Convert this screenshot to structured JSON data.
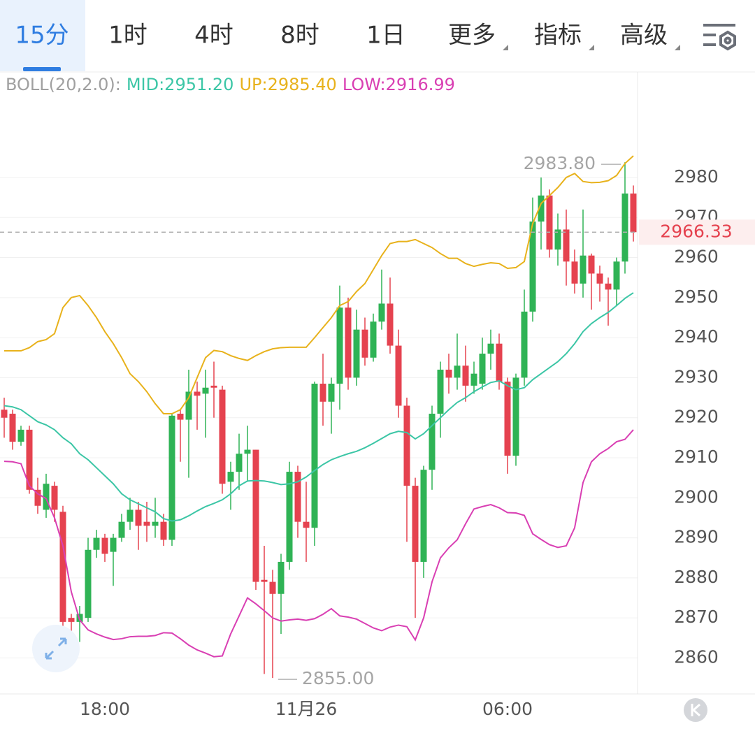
{
  "tabs": {
    "items": [
      "15分",
      "1时",
      "4时",
      "8时",
      "1日",
      "更多",
      "指标",
      "高级"
    ],
    "selected_index": 0,
    "dropdown_from": 5
  },
  "chart_data": {
    "type": "candlestick",
    "indicator_label": "BOLL(20,2.0):",
    "categories": [
      null,
      null,
      null,
      null,
      null,
      null,
      null,
      null,
      null,
      null,
      null,
      null,
      "18:00",
      null,
      null,
      null,
      null,
      null,
      null,
      null,
      null,
      null,
      null,
      null,
      null,
      null,
      null,
      null,
      null,
      null,
      null,
      null,
      null,
      null,
      null,
      null,
      "11月26",
      null,
      null,
      null,
      null,
      null,
      null,
      null,
      null,
      null,
      null,
      null,
      null,
      null,
      null,
      null,
      null,
      null,
      null,
      null,
      null,
      null,
      null,
      null,
      "06:00",
      null,
      null,
      null,
      null,
      null,
      null,
      null,
      null,
      null,
      null,
      null,
      null,
      null,
      null,
      null
    ],
    "open": [
      2922,
      2921,
      2914,
      2917,
      2902,
      2897,
      2903,
      2896.5,
      2870,
      2869,
      2870,
      2887,
      2890,
      2886.5,
      2890,
      2894,
      2897,
      2894,
      2893,
      2894,
      2889.5,
      2921,
      2919.5,
      2926.5,
      2926,
      2928,
      2927,
      2904,
      2906.5,
      2911,
      2912,
      2879.5,
      2879,
      2876,
      2884,
      2906.5,
      2894,
      2892.5,
      2928.5,
      2924,
      2928.5,
      2947.5,
      2930,
      2942,
      2935,
      2944,
      2948.5,
      2938,
      2923,
      2903,
      2884,
      2907,
      2921,
      2932,
      2930,
      2933,
      2928,
      2928.5,
      2936,
      2938.5,
      2929,
      2910.5,
      2930,
      2946.5,
      2969,
      2975.5,
      2962,
      2967,
      2959,
      2953.5,
      2960.5,
      2956,
      2953.5,
      2952,
      2959,
      2976
    ],
    "high": [
      2925,
      2922,
      2918,
      2918,
      2905,
      2906,
      2904,
      2898,
      2871,
      2873,
      2890,
      2892,
      2891,
      2891,
      2896,
      2900,
      2899,
      2899,
      2900,
      2896,
      2921,
      2922,
      2932,
      2929,
      2932,
      2934,
      2928,
      2909,
      2916,
      2918,
      2912,
      2888,
      2882,
      2886,
      2909,
      2908,
      2904,
      2929,
      2936,
      2930,
      2953,
      2950,
      2947,
      2945,
      2946,
      2957,
      2955,
      2942,
      2925,
      2905,
      2908,
      2923,
      2934,
      2936,
      2941,
      2938,
      2934,
      2940,
      2942,
      2941,
      2930,
      2931,
      2952,
      2975,
      2980,
      2977,
      2971,
      2972,
      2962,
      2972,
      2961,
      2958,
      2955,
      2960,
      2983.8,
      2978
    ],
    "low": [
      2915,
      2912,
      2913,
      2901,
      2896,
      2895,
      2894,
      2866,
      2865,
      2864,
      2869,
      2885,
      2884,
      2878,
      2889,
      2892,
      2887,
      2889,
      2890,
      2888,
      2888,
      2909,
      2905,
      2917,
      2915,
      2920,
      2901,
      2897,
      2902,
      2904,
      2877,
      2856,
      2855,
      2866,
      2882,
      2890,
      2884,
      2888,
      2918,
      2916,
      2922,
      2927,
      2928,
      2933,
      2934,
      2942,
      2936,
      2920,
      2889,
      2870,
      2880,
      2902,
      2915,
      2926,
      2927,
      2924,
      2926,
      2927,
      2932,
      2927,
      2906,
      2908,
      2928,
      2944,
      2962,
      2960,
      2958,
      2953,
      2951,
      2950,
      2947,
      2949,
      2943,
      2948,
      2956,
      2964
    ],
    "close": [
      2920,
      2914,
      2917,
      2902,
      2898,
      2903.5,
      2897,
      2869,
      2869,
      2871,
      2887,
      2890,
      2886,
      2890,
      2894,
      2897,
      2893,
      2893,
      2894,
      2889.5,
      2920.5,
      2919.5,
      2926.5,
      2925.5,
      2927.5,
      2927.5,
      2903.5,
      2906.5,
      2911,
      2912,
      2879,
      2879,
      2876,
      2884,
      2906.5,
      2894,
      2892.5,
      2928.5,
      2924,
      2928.5,
      2947.5,
      2930,
      2942,
      2935,
      2944,
      2948.5,
      2938,
      2923,
      2903,
      2884,
      2907,
      2921,
      2932,
      2930,
      2933,
      2928,
      2931,
      2936,
      2938.5,
      2929,
      2910.5,
      2930,
      2946.5,
      2969,
      2975.5,
      2962,
      2967,
      2959,
      2953.5,
      2960.5,
      2956,
      2953.5,
      2952,
      2959,
      2976,
      2966.33
    ],
    "up_color": "#2fb355",
    "down_color": "#e5424f",
    "series": [
      {
        "name": "MID:2951.20",
        "color": "#3cc6a6",
        "values": [
          2923,
          2922.7,
          2922,
          2920.5,
          2919,
          2918.2,
          2917,
          2915,
          2913.5,
          2911,
          2909.5,
          2907.5,
          2905.5,
          2903.5,
          2901,
          2899.5,
          2898.5,
          2897.5,
          2896.5,
          2894.8,
          2894.2,
          2894.5,
          2895.5,
          2896.7,
          2897.8,
          2898.6,
          2899.5,
          2901,
          2903,
          2904.2,
          2904.3,
          2904.2,
          2903.8,
          2903.3,
          2903.5,
          2904,
          2905.2,
          2906.8,
          2908.3,
          2909.5,
          2910.3,
          2911,
          2911.6,
          2912.5,
          2913.6,
          2914.8,
          2916,
          2916.6,
          2916.3,
          2914.7,
          2916,
          2918,
          2920,
          2922,
          2923.8,
          2925,
          2926.5,
          2927.7,
          2928.8,
          2929.2,
          2928,
          2927,
          2927.5,
          2929.5,
          2931,
          2932.5,
          2934,
          2936,
          2938.5,
          2941.5,
          2943.5,
          2945,
          2946.3,
          2948,
          2949.8,
          2951.2
        ]
      },
      {
        "name": "UP:2985.40",
        "color": "#e8b21c",
        "values": [
          2936.7,
          2936.7,
          2936.7,
          2937.5,
          2939,
          2939.5,
          2941,
          2947.5,
          2950,
          2950.5,
          2948,
          2945,
          2941.5,
          2938.5,
          2935,
          2931,
          2929,
          2926.5,
          2923.5,
          2921,
          2921,
          2922,
          2925,
          2930,
          2935,
          2936.8,
          2936.5,
          2935.5,
          2934.8,
          2934.3,
          2935.5,
          2936.5,
          2937.2,
          2937.5,
          2937.6,
          2937.6,
          2937.6,
          2940,
          2942.5,
          2945,
          2948,
          2949,
          2951.5,
          2953.5,
          2957,
          2960.5,
          2963.5,
          2964,
          2964,
          2964.5,
          2963.5,
          2962.5,
          2961,
          2959.8,
          2959.8,
          2958.5,
          2957.8,
          2958.3,
          2958.7,
          2958.5,
          2957.3,
          2957.5,
          2959,
          2968.5,
          2973.5,
          2975.5,
          2977.5,
          2980,
          2981,
          2979,
          2978.7,
          2978.8,
          2979.2,
          2980.5,
          2983.5,
          2985.4
        ]
      },
      {
        "name": "LOW:2916.99",
        "color": "#d93fb3",
        "values": [
          2909.1,
          2909,
          2908.5,
          2903,
          2901,
          2899.8,
          2895,
          2888,
          2876.5,
          2869.5,
          2867,
          2866,
          2865.2,
          2864.6,
          2864.8,
          2865.3,
          2865.4,
          2865.4,
          2865.6,
          2866.3,
          2866.2,
          2864.8,
          2863.2,
          2862,
          2861.2,
          2860.3,
          2860.5,
          2866,
          2870.5,
          2875,
          2873.5,
          2871.8,
          2870,
          2869.2,
          2869.5,
          2869.7,
          2869.4,
          2869.8,
          2870.9,
          2872.3,
          2870.5,
          2870.2,
          2869.7,
          2868.6,
          2867.5,
          2866.8,
          2867.7,
          2868.2,
          2867.8,
          2864.5,
          2870,
          2879,
          2885,
          2887.5,
          2889.5,
          2893.5,
          2897.2,
          2897.8,
          2898.3,
          2897.5,
          2896.3,
          2896.2,
          2895.6,
          2891,
          2889.6,
          2888.3,
          2887.6,
          2888,
          2892.5,
          2903.8,
          2909,
          2911,
          2912.3,
          2914,
          2914.6,
          2916.99
        ]
      }
    ],
    "ylim": [
      2851,
      3006
    ],
    "yticks": [
      2860,
      2870,
      2880,
      2890,
      2900,
      2910,
      2920,
      2930,
      2940,
      2950,
      2960,
      2970,
      2980
    ],
    "grid": true,
    "annotations": [
      {
        "value": 2983.8,
        "label": "2983.80",
        "of": "high"
      },
      {
        "value": 2855,
        "label": "2855.00",
        "of": "low"
      }
    ],
    "last_price": {
      "value": 2966.33,
      "label": "2966.33"
    }
  }
}
